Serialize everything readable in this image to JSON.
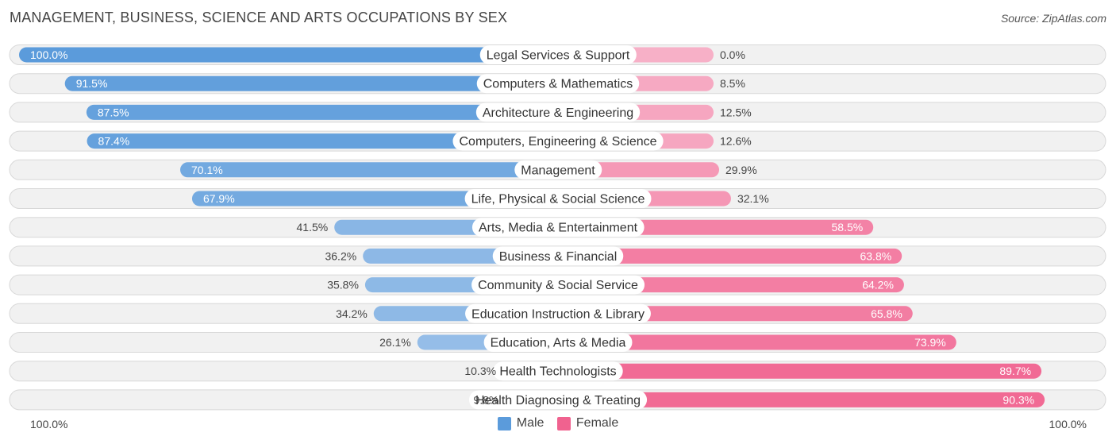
{
  "header": {
    "title": "MANAGEMENT, BUSINESS, SCIENCE AND ARTS OCCUPATIONS BY SEX",
    "source": "Source: ZipAtlas.com"
  },
  "axis": {
    "left_label": "100.0%",
    "right_label": "100.0%"
  },
  "legend": {
    "male_label": "Male",
    "female_label": "Female"
  },
  "colors": {
    "male_strong": "#5b9bdb",
    "male_light": "#a9c9ec",
    "female_strong": "#f0628f",
    "female_light": "#f7b0c7"
  },
  "chart_data": {
    "type": "bar",
    "orientation": "diverging-horizontal",
    "title": "MANAGEMENT, BUSINESS, SCIENCE AND ARTS OCCUPATIONS BY SEX",
    "xlim": [
      -100,
      100
    ],
    "categories": [
      "Legal Services & Support",
      "Computers & Mathematics",
      "Architecture & Engineering",
      "Computers, Engineering & Science",
      "Management",
      "Life, Physical & Social Science",
      "Arts, Media & Entertainment",
      "Business & Financial",
      "Community & Social Service",
      "Education Instruction & Library",
      "Education, Arts & Media",
      "Health Technologists",
      "Health Diagnosing & Treating"
    ],
    "series": [
      {
        "name": "Male",
        "values": [
          100.0,
          91.5,
          87.5,
          87.4,
          70.1,
          67.9,
          41.5,
          36.2,
          35.8,
          34.2,
          26.1,
          10.3,
          9.8
        ],
        "labels": [
          "100.0%",
          "91.5%",
          "87.5%",
          "87.4%",
          "70.1%",
          "67.9%",
          "41.5%",
          "36.2%",
          "35.8%",
          "34.2%",
          "26.1%",
          "10.3%",
          "9.8%"
        ]
      },
      {
        "name": "Female",
        "values": [
          0.0,
          8.5,
          12.5,
          12.6,
          29.9,
          32.1,
          58.5,
          63.8,
          64.2,
          65.8,
          73.9,
          89.7,
          90.3
        ],
        "labels": [
          "0.0%",
          "8.5%",
          "12.5%",
          "12.6%",
          "29.9%",
          "32.1%",
          "58.5%",
          "63.8%",
          "64.2%",
          "65.8%",
          "73.9%",
          "89.7%",
          "90.3%"
        ]
      }
    ],
    "legend_position": "bottom-center"
  }
}
